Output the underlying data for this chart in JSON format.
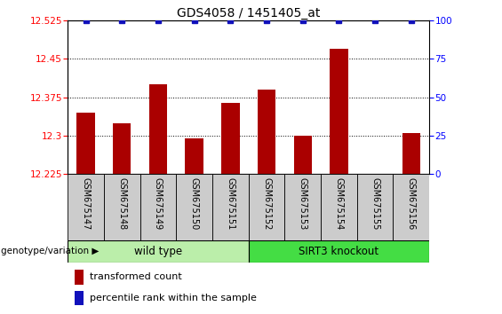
{
  "title": "GDS4058 / 1451405_at",
  "samples": [
    "GSM675147",
    "GSM675148",
    "GSM675149",
    "GSM675150",
    "GSM675151",
    "GSM675152",
    "GSM675153",
    "GSM675154",
    "GSM675155",
    "GSM675156"
  ],
  "transformed_counts": [
    12.345,
    12.325,
    12.4,
    12.295,
    12.365,
    12.39,
    12.3,
    12.47,
    12.225,
    12.305
  ],
  "percentile_ranks": [
    100,
    100,
    100,
    100,
    100,
    100,
    100,
    100,
    100,
    100
  ],
  "ylim_left": [
    12.225,
    12.525
  ],
  "ylim_right": [
    0,
    100
  ],
  "yticks_left": [
    12.225,
    12.3,
    12.375,
    12.45,
    12.525
  ],
  "yticks_right": [
    0,
    25,
    50,
    75,
    100
  ],
  "bar_color": "#AA0000",
  "dot_color": "#1111BB",
  "bar_width": 0.5,
  "genotype_label": "genotype/variation",
  "wt_color": "#BBEEAA",
  "ko_color": "#44DD44",
  "sample_bg_color": "#CCCCCC",
  "legend_items": [
    {
      "color": "#AA0000",
      "label": "transformed count"
    },
    {
      "color": "#1111BB",
      "label": "percentile rank within the sample"
    }
  ]
}
